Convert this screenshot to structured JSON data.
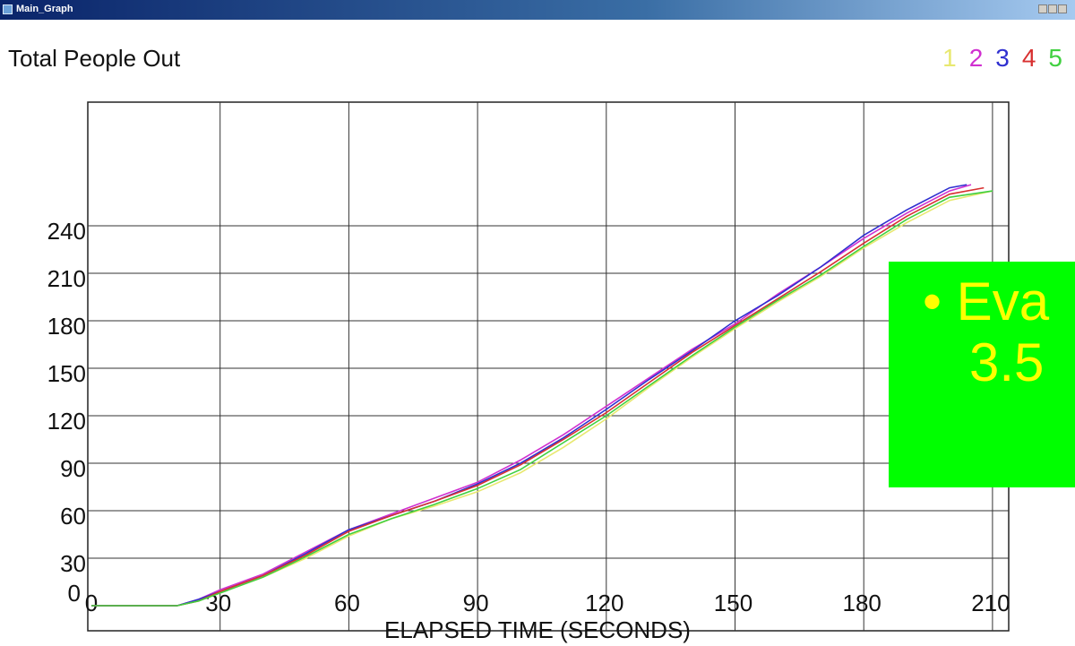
{
  "window": {
    "title": "Main_Graph"
  },
  "callout": {
    "line1": "• Eva",
    "line2": "3.5"
  },
  "chart_data": {
    "type": "line",
    "title": "Total People Out",
    "xlabel": "ELAPSED TIME (SECONDS)",
    "ylabel": "",
    "xlim": [
      0,
      220
    ],
    "ylim": [
      0,
      260
    ],
    "x_ticks": [
      0,
      30,
      60,
      90,
      120,
      150,
      180,
      210
    ],
    "y_ticks": [
      0,
      30,
      60,
      90,
      120,
      150,
      180,
      210,
      240
    ],
    "grid": true,
    "legend_position": "top-right",
    "series": [
      {
        "name": "1",
        "color": "#e8e870",
        "x": [
          0,
          10,
          20,
          25,
          30,
          40,
          50,
          60,
          70,
          80,
          90,
          100,
          110,
          120,
          130,
          140,
          150,
          160,
          170,
          180,
          190,
          200,
          210
        ],
        "y": [
          0,
          0,
          0,
          3,
          8,
          18,
          30,
          44,
          55,
          63,
          72,
          84,
          100,
          118,
          138,
          157,
          175,
          192,
          208,
          226,
          242,
          256,
          262
        ]
      },
      {
        "name": "2",
        "color": "#d030d0",
        "x": [
          0,
          10,
          20,
          25,
          30,
          40,
          50,
          60,
          70,
          80,
          90,
          100,
          110,
          120,
          130,
          140,
          150,
          160,
          170,
          180,
          190,
          200,
          205
        ],
        "y": [
          0,
          0,
          0,
          4,
          10,
          20,
          34,
          48,
          58,
          68,
          78,
          92,
          108,
          126,
          144,
          162,
          178,
          197,
          214,
          232,
          248,
          262,
          266
        ]
      },
      {
        "name": "3",
        "color": "#3030d0",
        "x": [
          0,
          10,
          20,
          25,
          30,
          40,
          50,
          60,
          70,
          80,
          90,
          100,
          110,
          120,
          130,
          140,
          150,
          160,
          170,
          180,
          190,
          200,
          204
        ],
        "y": [
          0,
          0,
          0,
          4,
          9,
          19,
          33,
          48,
          57,
          66,
          77,
          90,
          106,
          124,
          143,
          161,
          180,
          196,
          214,
          234,
          250,
          264,
          266
        ]
      },
      {
        "name": "4",
        "color": "#d83030",
        "x": [
          0,
          10,
          20,
          25,
          30,
          40,
          50,
          60,
          70,
          80,
          90,
          100,
          110,
          120,
          130,
          140,
          150,
          160,
          170,
          180,
          190,
          200,
          208
        ],
        "y": [
          0,
          0,
          0,
          3,
          9,
          19,
          32,
          47,
          57,
          66,
          76,
          89,
          105,
          122,
          141,
          160,
          177,
          194,
          211,
          229,
          246,
          260,
          264
        ]
      },
      {
        "name": "5",
        "color": "#40d040",
        "x": [
          0,
          10,
          20,
          25,
          30,
          40,
          50,
          60,
          70,
          80,
          90,
          100,
          110,
          120,
          130,
          140,
          150,
          160,
          170,
          180,
          190,
          200,
          210
        ],
        "y": [
          0,
          0,
          0,
          3,
          8,
          18,
          31,
          45,
          55,
          64,
          74,
          86,
          103,
          120,
          139,
          158,
          176,
          193,
          209,
          227,
          244,
          258,
          262
        ]
      }
    ]
  }
}
